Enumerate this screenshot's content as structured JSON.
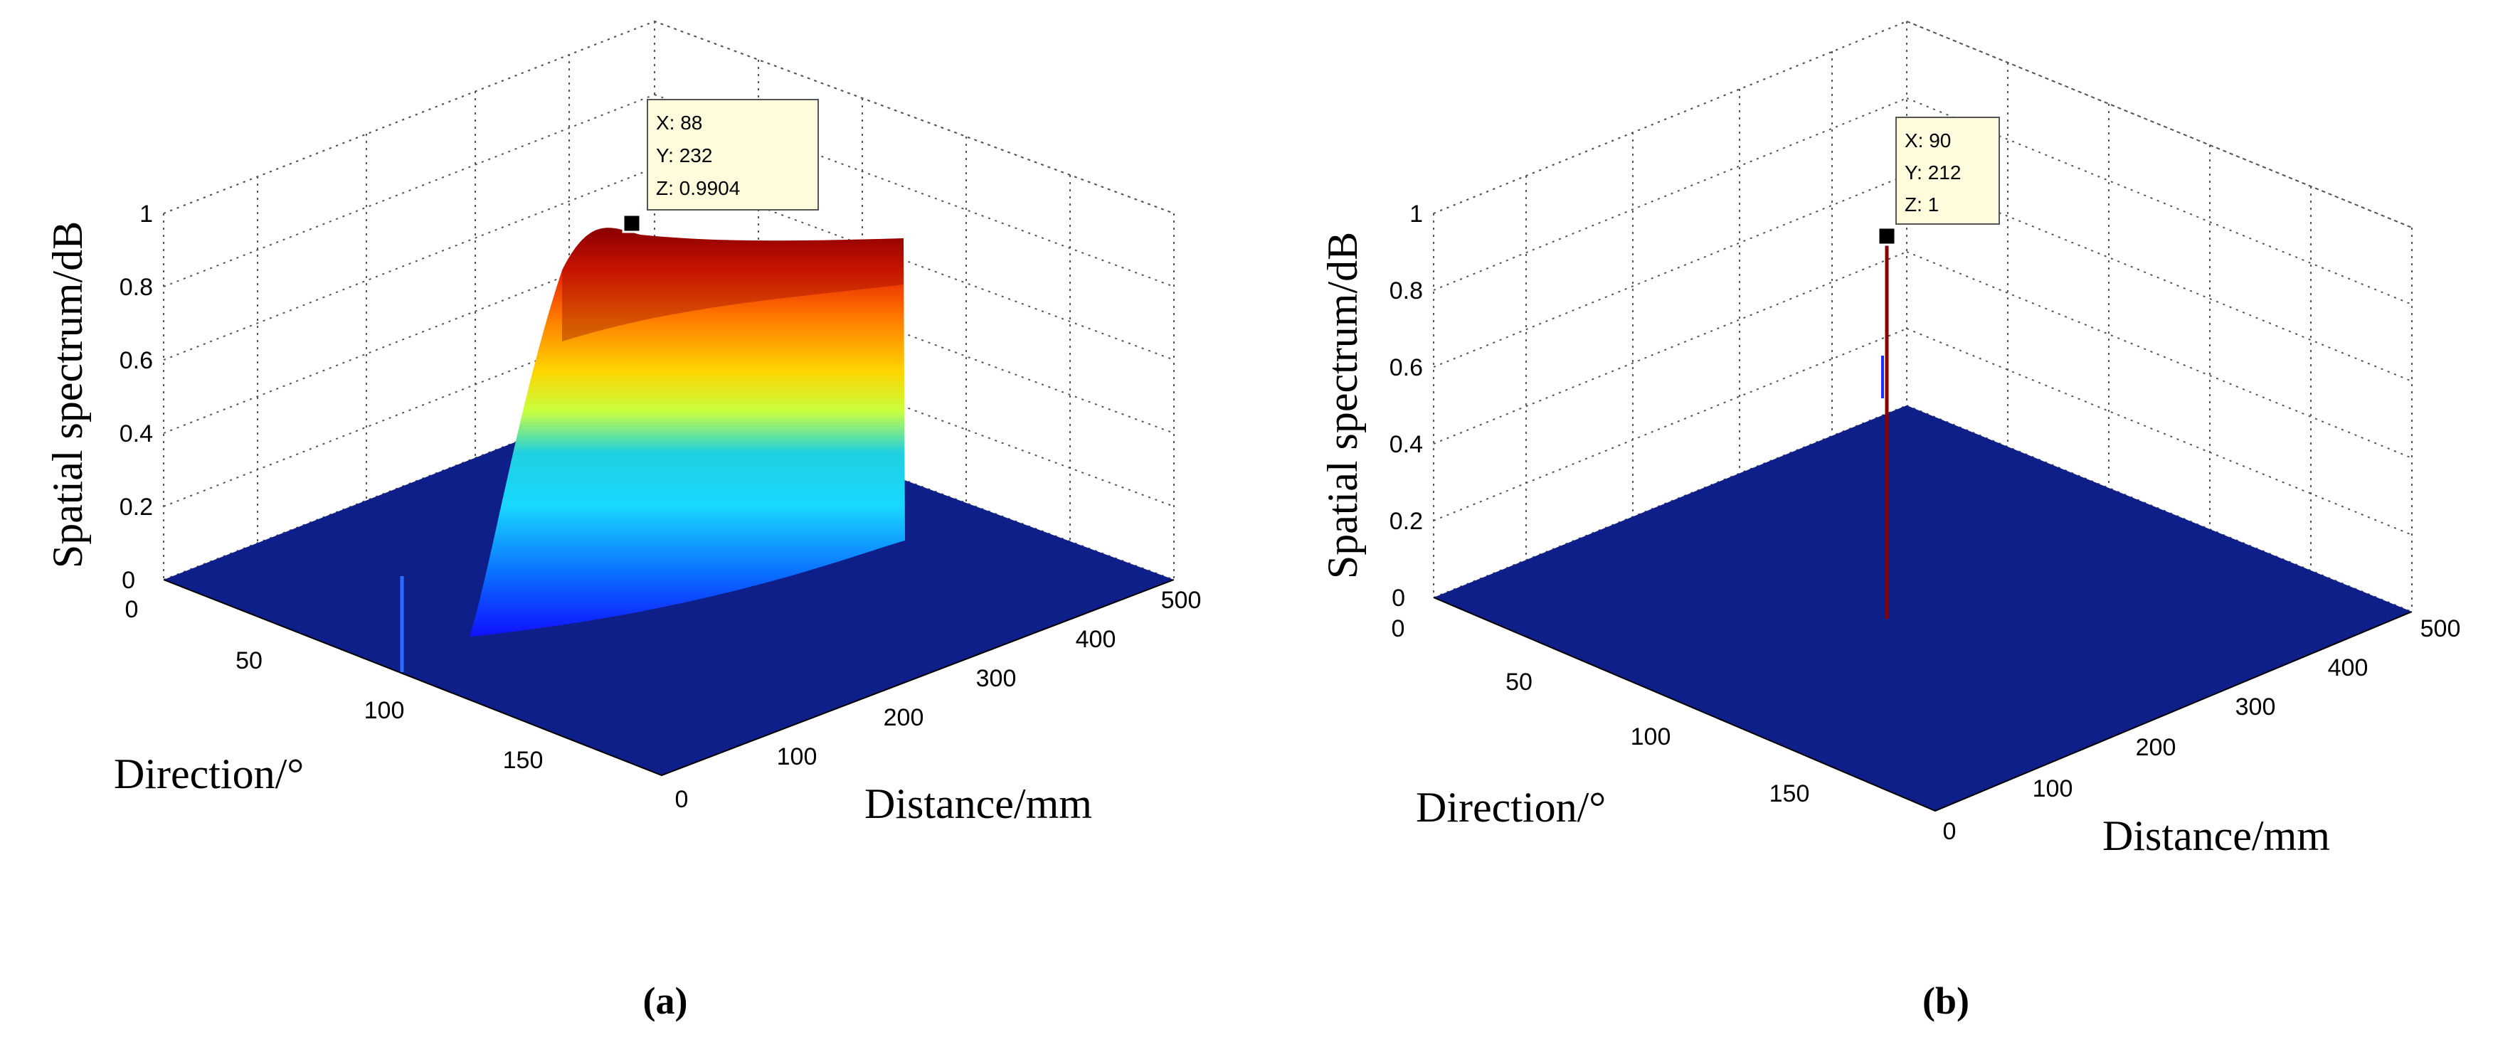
{
  "chart_data": [
    {
      "type": "surface3d",
      "panel_label": "(a)",
      "zlabel": "Spatial spectrum/dB",
      "xlabel": "Direction/°",
      "ylabel": "Distance/mm",
      "xlim": [
        0,
        180
      ],
      "ylim": [
        0,
        500
      ],
      "zlim": [
        0,
        1
      ],
      "x_ticks": [
        "0",
        "50",
        "100",
        "150"
      ],
      "y_ticks": [
        "0",
        "100",
        "200",
        "300",
        "400",
        "500"
      ],
      "z_ticks": [
        "0",
        "0.2",
        "0.4",
        "0.6",
        "0.8",
        "1"
      ],
      "grid": true,
      "colormap": "jet",
      "description": "broad ridge rising with distance from about 100 mm to 500 mm",
      "datatip": {
        "lines": [
          "X: 88",
          "Y: 232",
          "Z: 0.9904"
        ],
        "x": 88,
        "y": 232,
        "z": 0.9904
      }
    },
    {
      "type": "surface3d",
      "panel_label": "(b)",
      "zlabel": "Spatial spectrum/dB",
      "xlabel": "Direction/°",
      "ylabel": "Distance/mm",
      "xlim": [
        0,
        180
      ],
      "ylim": [
        0,
        500
      ],
      "zlim": [
        0,
        1
      ],
      "x_ticks": [
        "0",
        "50",
        "100",
        "150"
      ],
      "y_ticks": [
        "0",
        "100",
        "200",
        "300",
        "400",
        "500"
      ],
      "z_ticks": [
        "0",
        "0.2",
        "0.4",
        "0.6",
        "0.8",
        "1"
      ],
      "grid": true,
      "colormap": "jet",
      "description": "single sharp peak",
      "datatip": {
        "lines": [
          "X: 90",
          "Y: 212",
          "Z: 1"
        ],
        "x": 90,
        "y": 212,
        "z": 1
      }
    }
  ]
}
